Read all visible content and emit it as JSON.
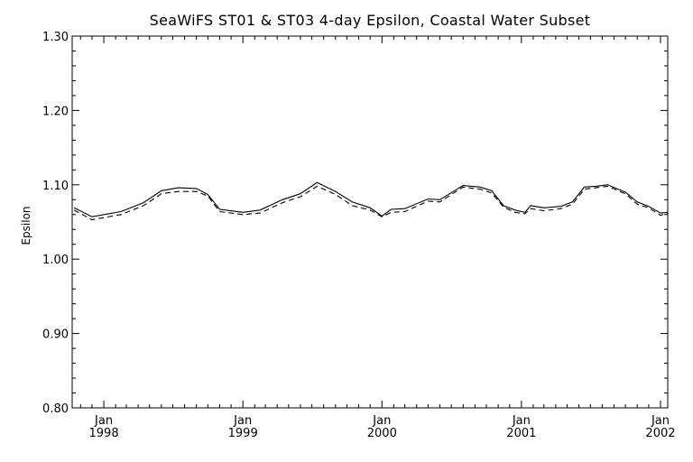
{
  "chart_data": {
    "type": "line",
    "title": "SeaWiFS ST01 & ST03 4-day Epsilon, Coastal Water Subset",
    "xlabel": "",
    "ylabel": "Epsilon",
    "ylim": [
      0.8,
      1.3
    ],
    "y_ticks": [
      "0.80",
      "0.90",
      "1.00",
      "1.10",
      "1.20",
      "1.30"
    ],
    "xlim": [
      "1997-10-10",
      "2002-01-20"
    ],
    "x_ticks": [
      {
        "date": "1998-01-01",
        "month": "Jan",
        "year": "1998"
      },
      {
        "date": "1999-01-01",
        "month": "Jan",
        "year": "1999"
      },
      {
        "date": "2000-01-01",
        "month": "Jan",
        "year": "2000"
      },
      {
        "date": "2001-01-01",
        "month": "Jan",
        "year": "2001"
      },
      {
        "date": "2002-01-01",
        "month": "Jan",
        "year": "2002"
      }
    ],
    "grid": false,
    "series": [
      {
        "style": "solid",
        "color": "#000000",
        "points": [
          [
            "1997-10-15",
            1.069
          ],
          [
            "1997-12-01",
            1.057
          ],
          [
            "1998-02-15",
            1.064
          ],
          [
            "1998-04-15",
            1.076
          ],
          [
            "1998-06-01",
            1.092
          ],
          [
            "1998-07-15",
            1.096
          ],
          [
            "1998-09-01",
            1.095
          ],
          [
            "1998-10-01",
            1.087
          ],
          [
            "1998-11-01",
            1.067
          ],
          [
            "1999-01-01",
            1.063
          ],
          [
            "1999-02-15",
            1.066
          ],
          [
            "1999-04-15",
            1.08
          ],
          [
            "1999-06-01",
            1.088
          ],
          [
            "1999-07-15",
            1.103
          ],
          [
            "1999-09-01",
            1.091
          ],
          [
            "1999-10-15",
            1.077
          ],
          [
            "1999-12-01",
            1.069
          ],
          [
            "2000-01-01",
            1.058
          ],
          [
            "2000-01-25",
            1.067
          ],
          [
            "2000-03-01",
            1.068
          ],
          [
            "2000-05-01",
            1.081
          ],
          [
            "2000-06-01",
            1.08
          ],
          [
            "2000-08-01",
            1.099
          ],
          [
            "2000-09-15",
            1.097
          ],
          [
            "2000-10-15",
            1.092
          ],
          [
            "2000-11-15",
            1.072
          ],
          [
            "2000-12-15",
            1.066
          ],
          [
            "2001-01-10",
            1.063
          ],
          [
            "2001-01-25",
            1.072
          ],
          [
            "2001-03-01",
            1.069
          ],
          [
            "2001-04-15",
            1.071
          ],
          [
            "2001-05-15",
            1.077
          ],
          [
            "2001-06-15",
            1.097
          ],
          [
            "2001-07-15",
            1.098
          ],
          [
            "2001-08-15",
            1.1
          ],
          [
            "2001-10-01",
            1.09
          ],
          [
            "2001-11-01",
            1.077
          ],
          [
            "2001-12-01",
            1.071
          ],
          [
            "2002-01-01",
            1.062
          ],
          [
            "2002-01-20",
            1.063
          ]
        ]
      },
      {
        "style": "dashed",
        "color": "#000000",
        "points": [
          [
            "1997-10-15",
            1.066
          ],
          [
            "1997-12-01",
            1.053
          ],
          [
            "1998-02-15",
            1.06
          ],
          [
            "1998-04-15",
            1.072
          ],
          [
            "1998-06-01",
            1.088
          ],
          [
            "1998-07-15",
            1.091
          ],
          [
            "1998-09-01",
            1.091
          ],
          [
            "1998-10-01",
            1.085
          ],
          [
            "1998-11-01",
            1.064
          ],
          [
            "1999-01-01",
            1.06
          ],
          [
            "1999-02-15",
            1.062
          ],
          [
            "1999-04-15",
            1.076
          ],
          [
            "1999-06-01",
            1.084
          ],
          [
            "1999-07-15",
            1.098
          ],
          [
            "1999-09-01",
            1.087
          ],
          [
            "1999-10-15",
            1.072
          ],
          [
            "1999-12-01",
            1.066
          ],
          [
            "2000-01-01",
            1.057
          ],
          [
            "2000-01-25",
            1.063
          ],
          [
            "2000-03-01",
            1.064
          ],
          [
            "2000-05-01",
            1.078
          ],
          [
            "2000-06-01",
            1.077
          ],
          [
            "2000-08-01",
            1.097
          ],
          [
            "2000-09-15",
            1.094
          ],
          [
            "2000-10-15",
            1.089
          ],
          [
            "2000-11-15",
            1.07
          ],
          [
            "2000-12-15",
            1.063
          ],
          [
            "2001-01-10",
            1.061
          ],
          [
            "2001-01-25",
            1.068
          ],
          [
            "2001-03-01",
            1.065
          ],
          [
            "2001-04-15",
            1.068
          ],
          [
            "2001-05-15",
            1.074
          ],
          [
            "2001-06-15",
            1.094
          ],
          [
            "2001-07-15",
            1.096
          ],
          [
            "2001-08-15",
            1.098
          ],
          [
            "2001-10-01",
            1.088
          ],
          [
            "2001-11-01",
            1.074
          ],
          [
            "2001-12-01",
            1.069
          ],
          [
            "2002-01-01",
            1.059
          ],
          [
            "2002-01-20",
            1.062
          ]
        ]
      }
    ]
  }
}
